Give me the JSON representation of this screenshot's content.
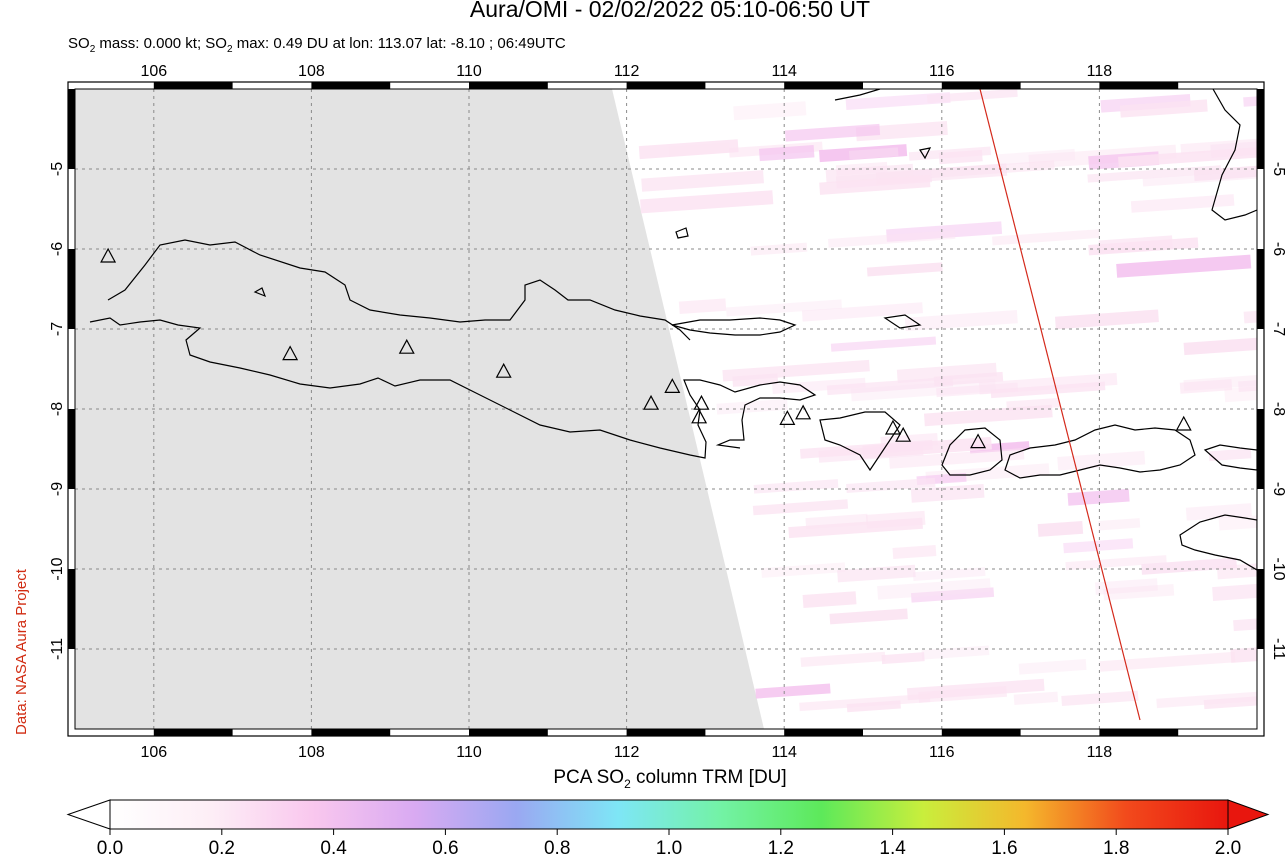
{
  "title": "Aura/OMI - 02/02/2022 05:10-06:50 UT",
  "subtitle": {
    "prefix": "SO",
    "sub": "2",
    "mass_text": " mass: 0.000 kt; SO",
    "max_text": " max: 0.49 DU at lon: 113.07 lat: -8.10 ; 06:49UTC"
  },
  "credit": "Data: NASA Aura Project",
  "colorbar": {
    "label_prefix": "PCA SO",
    "label_sub": "2",
    "label_suffix": " column TRM [DU]",
    "ticks": [
      "0.0",
      "0.2",
      "0.4",
      "0.6",
      "0.8",
      "1.0",
      "1.2",
      "1.4",
      "1.6",
      "1.8",
      "2.0"
    ],
    "colors": [
      "#ffffff",
      "#fdeef6",
      "#f9c7ee",
      "#d9aaf2",
      "#9aa8f2",
      "#7ee6f6",
      "#73f2a6",
      "#5de95a",
      "#c9ee3c",
      "#f4b82c",
      "#f24a1c",
      "#e8160e"
    ]
  },
  "map": {
    "lon_range": [
      105,
      120
    ],
    "lat_range": [
      -12,
      -4
    ],
    "lon_ticks": [
      106,
      108,
      110,
      112,
      114,
      116,
      118
    ],
    "lat_ticks": [
      -5,
      -6,
      -7,
      -8,
      -9,
      -10,
      -11
    ],
    "no_data_color": "#e3e3e3",
    "swath_edge_color": "#d42a1c",
    "volcano_icon": "triangle-outline",
    "volcanoes": [
      {
        "lon": 105.42,
        "lat": -6.1
      },
      {
        "lon": 107.73,
        "lat": -7.32
      },
      {
        "lon": 109.21,
        "lat": -7.24
      },
      {
        "lon": 110.44,
        "lat": -7.54
      },
      {
        "lon": 112.31,
        "lat": -7.94
      },
      {
        "lon": 112.58,
        "lat": -7.73
      },
      {
        "lon": 112.95,
        "lat": -7.94
      },
      {
        "lon": 112.92,
        "lat": -8.11
      },
      {
        "lon": 114.04,
        "lat": -8.13
      },
      {
        "lon": 114.24,
        "lat": -8.06
      },
      {
        "lon": 115.38,
        "lat": -8.25
      },
      {
        "lon": 115.51,
        "lat": -8.34
      },
      {
        "lon": 116.46,
        "lat": -8.42
      },
      {
        "lon": 119.07,
        "lat": -8.2
      }
    ]
  }
}
